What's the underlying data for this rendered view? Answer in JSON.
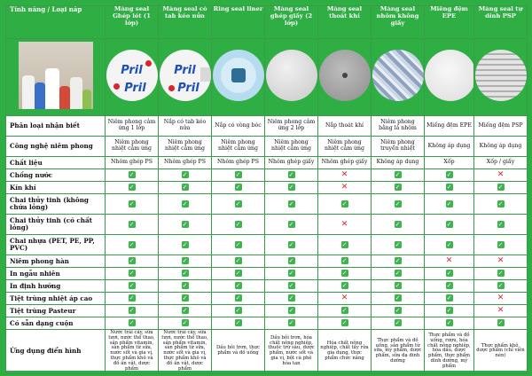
{
  "header": {
    "corner": "Tính năng / Loại nắp",
    "columns": [
      "Màng seal Ghép lót (1 lớp)",
      "Màng seal có tab kéo nửa",
      "Ring seal liner",
      "Màng seal ghép giấy (2 lớp)",
      "Màng seal thoát khí",
      "Màng seal nhôm không giấy",
      "Miếng đệm EPE",
      "Màng seal tự dính PSP"
    ]
  },
  "images": [
    "product-photo",
    "seal-pril",
    "seal-pril-tab",
    "ring-seal",
    "paper-seal",
    "vent-seal",
    "foil-seal",
    "epe-liner",
    "psp-seal"
  ],
  "brand_text": "Pril",
  "rows": {
    "identification": {
      "label": "Phân loại nhận biết",
      "cells": [
        "Niêm phong cảm ứng 1 lớp",
        "Nắp có tab kéo nửa",
        "Nắp có vòng bóc",
        "Niêm phong cảm ứng 2 lớp",
        "Nắp thoát khí",
        "Niêm phong bằng lá nhôm",
        "Miếng đệm EPE",
        "Miếng đệm PSP"
      ]
    },
    "technology": {
      "label": "Công nghệ niêm phong",
      "cells": [
        "Niêm phong nhiệt cảm ứng",
        "Niêm phong nhiệt cảm ứng",
        "Niêm phong nhiệt cảm ứng",
        "Niêm phong nhiệt cảm ứng",
        "Niêm phong nhiệt cảm ứng",
        "Niêm phong truyền nhiệt",
        "Không áp dụng",
        "Không áp dụng"
      ]
    },
    "material": {
      "label": "Chất liệu",
      "cells": [
        "Nhôm ghép PS",
        "Nhôm ghép PS",
        "Nhôm ghép PS",
        "Nhôm ghép giấy",
        "Nhôm ghép giấy",
        "Không áp dụng",
        "Xốp",
        "Xốp / giấy"
      ]
    },
    "checks": [
      {
        "label": "Chống nước",
        "marks": [
          "y",
          "y",
          "y",
          "y",
          "n",
          "y",
          "y",
          "n"
        ]
      },
      {
        "label": "Kín khí",
        "marks": [
          "y",
          "y",
          "y",
          "y",
          "n",
          "y",
          "y",
          "y"
        ]
      },
      {
        "label": "Chai thủy tinh (không chứa lỏng)",
        "marks": [
          "y",
          "y",
          "y",
          "y",
          "y",
          "y",
          "y",
          "y"
        ]
      },
      {
        "label": "Chai thủy tinh (có chất lỏng)",
        "marks": [
          "y",
          "y",
          "y",
          "y",
          "n",
          "y",
          "y",
          "y"
        ]
      },
      {
        "label": "Chai nhựa (PET, PE, PP, PVC)",
        "marks": [
          "y",
          "y",
          "y",
          "y",
          "y",
          "y",
          "y",
          "y"
        ]
      },
      {
        "label": "Niêm phong hàn",
        "marks": [
          "y",
          "y",
          "y",
          "y",
          "y",
          "y",
          "n",
          "n"
        ]
      },
      {
        "label": "In ngẫu nhiên",
        "marks": [
          "y",
          "y",
          "y",
          "y",
          "y",
          "y",
          "y",
          "y"
        ]
      },
      {
        "label": "In định hướng",
        "marks": [
          "y",
          "y",
          "y",
          "y",
          "y",
          "y",
          "y",
          "y"
        ]
      },
      {
        "label": "Tiệt trùng nhiệt áp cao",
        "marks": [
          "y",
          "y",
          "y",
          "y",
          "n",
          "y",
          "y",
          "n"
        ]
      },
      {
        "label": "Tiệt trùng Pasteur",
        "marks": [
          "y",
          "y",
          "y",
          "y",
          "y",
          "y",
          "y",
          "n"
        ]
      },
      {
        "label": "Có sẵn dạng cuộn",
        "marks": [
          "y",
          "y",
          "y",
          "y",
          "y",
          "y",
          "y",
          "y"
        ]
      }
    ],
    "applications": {
      "label": "Ứng dụng điển hình",
      "cells": [
        "Nước trái cây, sữa tươi, nước thể thao, sản phẩm vitamin, sản phẩm từ sữa, nước sốt và gia vị, thực phẩm khô và đồ ăn vặt, dược phẩm",
        "Nước trái cây, sữa tươi, nước thể thao, sản phẩm vitamin, sản phẩm từ sữa, nước sốt và gia vị, thực phẩm khô và đồ ăn vặt, dược phẩm",
        "Dầu bôi trơn, thực phẩm và đồ uống",
        "Dầu bôi trơn, hóa chất nông nghiệp, thuốc trừ sâu, dược phẩm, nước sốt và gia vị, bột cà phê hòa tan",
        "Hóa chất nông nghiệp, chất tẩy rửa gia dụng, thực phẩm chức năng",
        "Thực phẩm và đồ uống, sản phẩm từ sữa, mỹ phẩm, dược phẩm, sữa dạ dinh dưỡng",
        "Thực phẩm và đồ uống, rượu, hóa chất nông nghiệp, hóa dầu, dược phẩm, thực phẩm dinh dưỡng, mỹ phẩm",
        "Thực phẩm khô, dược phẩm (chỉ viên nén)"
      ]
    }
  }
}
